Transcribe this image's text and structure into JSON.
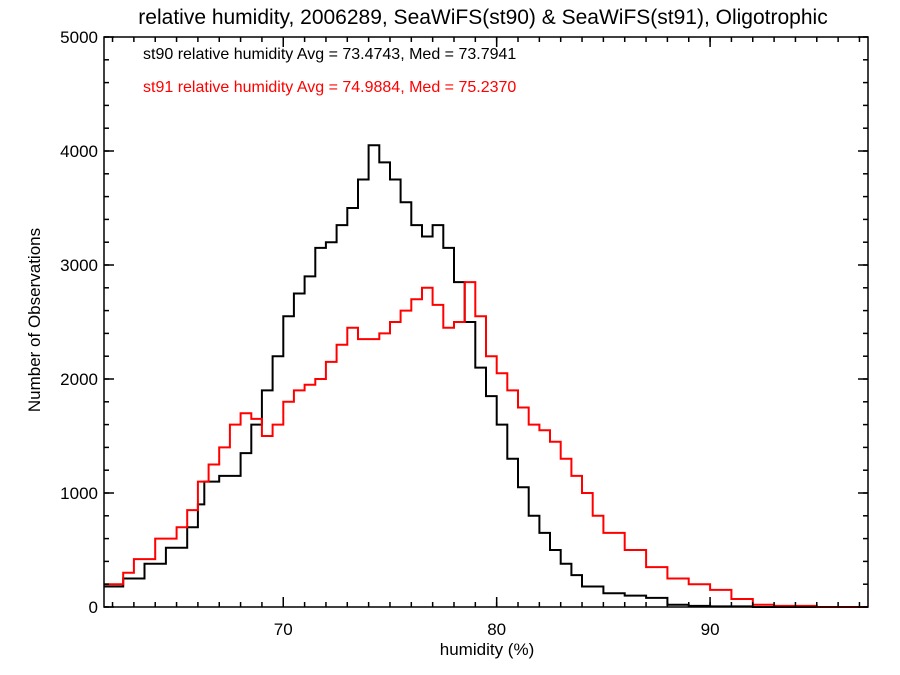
{
  "chart_data": {
    "type": "line",
    "step": true,
    "title": "relative humidity, 2006289, SeaWiFS(st90) & SeaWiFS(st91), Oligotrophic",
    "xlabel": "humidity (%)",
    "ylabel": "Number of Observations",
    "xlim": [
      61.6,
      97.4
    ],
    "ylim": [
      0,
      5000
    ],
    "x_ticks": [
      70,
      80,
      90
    ],
    "y_ticks": [
      0,
      1000,
      2000,
      3000,
      4000,
      5000
    ],
    "x_minor_step": 1,
    "y_minor_step": 200,
    "grid": false,
    "legend_placement": "top-left",
    "series": [
      {
        "label": "st90 relative humidity Avg = 73.4743, Med = 73.7941",
        "color": "#000000",
        "points": [
          [
            61.6,
            180
          ],
          [
            62.5,
            250
          ],
          [
            63.5,
            380
          ],
          [
            64.5,
            520
          ],
          [
            65.5,
            700
          ],
          [
            66.0,
            900
          ],
          [
            66.3,
            1100
          ],
          [
            67.0,
            1150
          ],
          [
            68.0,
            1350
          ],
          [
            68.5,
            1600
          ],
          [
            69.0,
            1900
          ],
          [
            69.5,
            2200
          ],
          [
            70.0,
            2550
          ],
          [
            70.5,
            2750
          ],
          [
            71.0,
            2900
          ],
          [
            71.5,
            3150
          ],
          [
            72.0,
            3200
          ],
          [
            72.5,
            3350
          ],
          [
            73.0,
            3500
          ],
          [
            73.5,
            3750
          ],
          [
            74.0,
            4050
          ],
          [
            74.5,
            3900
          ],
          [
            75.0,
            3750
          ],
          [
            75.5,
            3550
          ],
          [
            76.0,
            3350
          ],
          [
            76.5,
            3250
          ],
          [
            77.0,
            3350
          ],
          [
            77.5,
            3150
          ],
          [
            78.0,
            2850
          ],
          [
            78.5,
            2500
          ],
          [
            79.0,
            2100
          ],
          [
            79.5,
            1850
          ],
          [
            80.0,
            1600
          ],
          [
            80.5,
            1300
          ],
          [
            81.0,
            1050
          ],
          [
            81.5,
            800
          ],
          [
            82.0,
            650
          ],
          [
            82.5,
            500
          ],
          [
            83.0,
            380
          ],
          [
            83.5,
            280
          ],
          [
            84.0,
            180
          ],
          [
            85.0,
            120
          ],
          [
            86.0,
            100
          ],
          [
            87.0,
            80
          ],
          [
            88.0,
            20
          ],
          [
            89.0,
            10
          ],
          [
            90.0,
            5
          ],
          [
            92.0,
            0
          ],
          [
            97.4,
            0
          ]
        ]
      },
      {
        "label": "st91 relative humidity Avg = 74.9884, Med = 75.2370",
        "color": "#ff0000",
        "points": [
          [
            61.6,
            200
          ],
          [
            62.5,
            300
          ],
          [
            63.0,
            420
          ],
          [
            64.0,
            600
          ],
          [
            65.0,
            700
          ],
          [
            65.5,
            850
          ],
          [
            66.0,
            1100
          ],
          [
            66.5,
            1250
          ],
          [
            67.0,
            1400
          ],
          [
            67.5,
            1600
          ],
          [
            68.0,
            1700
          ],
          [
            68.5,
            1650
          ],
          [
            69.0,
            1500
          ],
          [
            69.5,
            1600
          ],
          [
            70.0,
            1800
          ],
          [
            70.5,
            1900
          ],
          [
            71.0,
            1950
          ],
          [
            71.5,
            2000
          ],
          [
            72.0,
            2150
          ],
          [
            72.5,
            2300
          ],
          [
            73.0,
            2450
          ],
          [
            73.5,
            2350
          ],
          [
            74.0,
            2350
          ],
          [
            74.5,
            2400
          ],
          [
            75.0,
            2500
          ],
          [
            75.5,
            2600
          ],
          [
            76.0,
            2700
          ],
          [
            76.5,
            2800
          ],
          [
            77.0,
            2650
          ],
          [
            77.5,
            2450
          ],
          [
            78.0,
            2500
          ],
          [
            78.5,
            2850
          ],
          [
            79.0,
            2550
          ],
          [
            79.5,
            2200
          ],
          [
            80.0,
            2050
          ],
          [
            80.5,
            1900
          ],
          [
            81.0,
            1750
          ],
          [
            81.5,
            1600
          ],
          [
            82.0,
            1550
          ],
          [
            82.5,
            1450
          ],
          [
            83.0,
            1300
          ],
          [
            83.5,
            1150
          ],
          [
            84.0,
            1000
          ],
          [
            84.5,
            800
          ],
          [
            85.0,
            650
          ],
          [
            86.0,
            500
          ],
          [
            87.0,
            350
          ],
          [
            88.0,
            250
          ],
          [
            89.0,
            200
          ],
          [
            90.0,
            150
          ],
          [
            91.0,
            70
          ],
          [
            92.0,
            20
          ],
          [
            93.0,
            10
          ],
          [
            95.0,
            0
          ],
          [
            97.4,
            0
          ]
        ]
      }
    ]
  }
}
